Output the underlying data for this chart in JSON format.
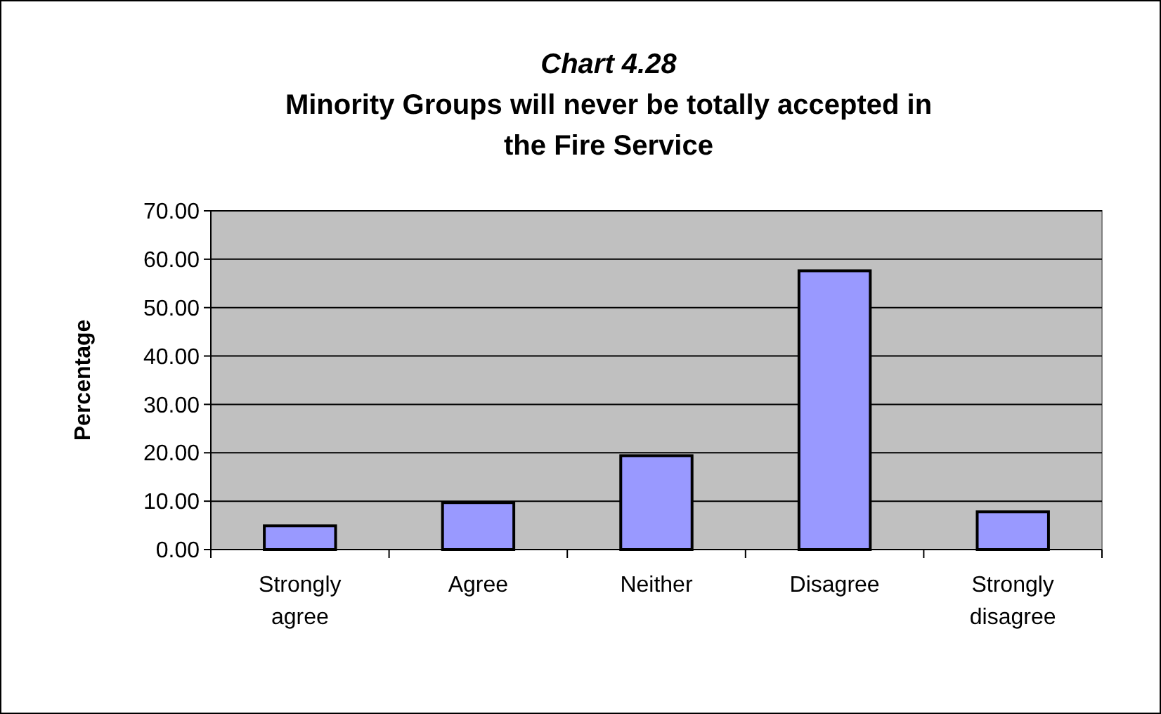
{
  "chart_data": {
    "type": "bar",
    "title": "Chart 4.28",
    "subtitle": "Minority Groups will never be totally accepted in the Fire Service",
    "ylabel": "Percentage",
    "categories": [
      "Strongly agree",
      "Agree",
      "Neither",
      "Disagree",
      "Strongly disagree"
    ],
    "values": [
      4.9,
      9.7,
      19.4,
      57.6,
      7.8
    ],
    "color": "#9999ff",
    "ylim": [
      0,
      70
    ],
    "yticks": [
      {
        "value": 0,
        "label": "0.00"
      },
      {
        "value": 10,
        "label": "10.00"
      },
      {
        "value": 20,
        "label": "20.00"
      },
      {
        "value": 30,
        "label": "30.00"
      },
      {
        "value": 40,
        "label": "40.00"
      },
      {
        "value": 50,
        "label": "50.00"
      },
      {
        "value": 60,
        "label": "60.00"
      },
      {
        "value": 70,
        "label": "70.00"
      }
    ],
    "grid": "y"
  }
}
